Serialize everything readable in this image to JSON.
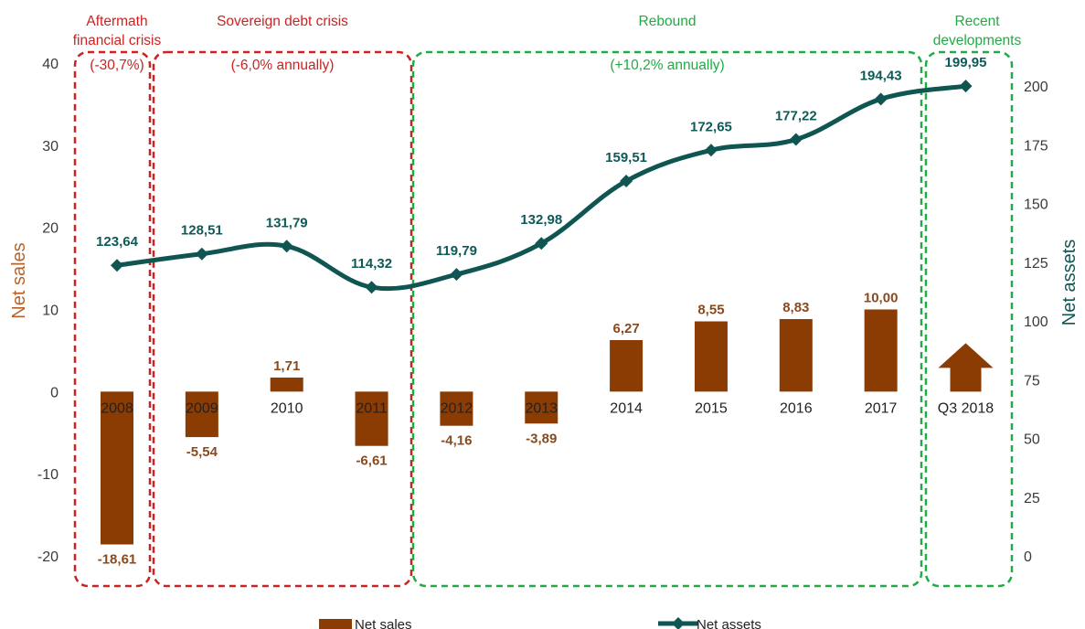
{
  "chart_data": {
    "type": "bar+line",
    "categories": [
      "2008",
      "2009",
      "2010",
      "2011",
      "2012",
      "2013",
      "2014",
      "2015",
      "2016",
      "2017",
      "Q3 2018"
    ],
    "series": [
      {
        "name": "Net sales",
        "type": "bar",
        "axis": "left",
        "color": "#8b3c02",
        "values": [
          -18.61,
          -5.54,
          1.71,
          -6.61,
          -4.16,
          -3.89,
          6.27,
          8.55,
          8.83,
          10.0,
          null
        ],
        "labels": [
          "-18,61",
          "-5,54",
          "1,71",
          "-6,61",
          "-4,16",
          "-3,89",
          "6,27",
          "8,55",
          "8,83",
          "10,00",
          ""
        ]
      },
      {
        "name": "Net assets",
        "type": "line",
        "axis": "right",
        "color": "#0f5552",
        "values": [
          123.64,
          128.51,
          131.79,
          114.32,
          119.79,
          132.98,
          159.51,
          172.65,
          177.22,
          194.43,
          199.95
        ],
        "labels": [
          "123,64",
          "128,51",
          "131,79",
          "114,32",
          "119,79",
          "132,98",
          "159,51",
          "172,65",
          "177,22",
          "194,43",
          "199,95"
        ]
      }
    ],
    "ylabel": "Net sales",
    "y2label": "Net assets",
    "ylim": [
      -20,
      40
    ],
    "y2lim": [
      0,
      200
    ],
    "yticks": [
      -20,
      -10,
      0,
      10,
      20,
      30,
      40
    ],
    "y2ticks": [
      0,
      25,
      50,
      75,
      100,
      125,
      150,
      175,
      200
    ],
    "grid": false,
    "legend_position": "bottom",
    "arrow_category": "Q3 2018",
    "annotations": [
      {
        "id": "aftermath",
        "lines": [
          "Aftermath",
          "financial crisis"
        ],
        "sub": "(-30,7%)",
        "color": "#cc2222",
        "from": 0,
        "to": 0
      },
      {
        "id": "sovereign",
        "lines": [
          "Sovereign debt crisis"
        ],
        "sub": "(-6,0% annually)",
        "color": "#cc2222",
        "from": 1,
        "to": 3
      },
      {
        "id": "rebound",
        "lines": [
          "Rebound"
        ],
        "sub": "(+10,2% annually)",
        "color": "#22aa44",
        "from": 4,
        "to": 9
      },
      {
        "id": "recent",
        "lines": [
          "Recent",
          "developments"
        ],
        "sub": "",
        "color": "#22aa44",
        "from": 10,
        "to": 10
      }
    ]
  }
}
